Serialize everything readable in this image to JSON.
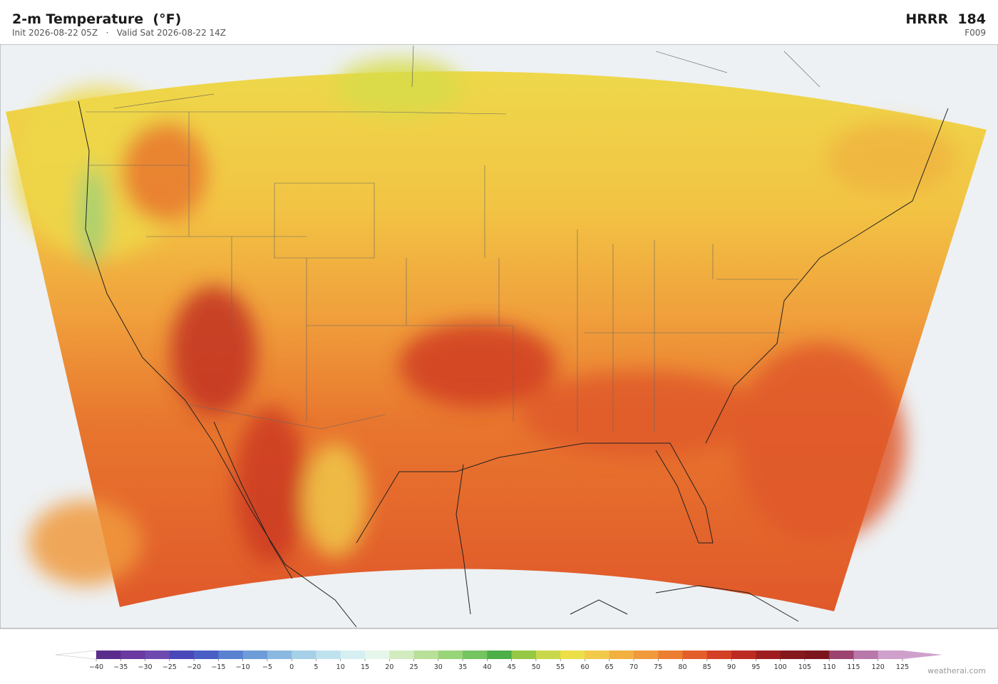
{
  "header": {
    "title": "2-m Temperature  (°F)",
    "subtitle": "Init 2026-08-22 05Z   ·   Valid Sat 2026-08-22 14Z",
    "model": "HRRR  184",
    "forecast_hour": "F009"
  },
  "colorbar": {
    "ticks": [
      {
        "value": -40,
        "label": "−40"
      },
      {
        "value": -35,
        "label": "−35"
      },
      {
        "value": -30,
        "label": "−30"
      },
      {
        "value": -25,
        "label": "−25"
      },
      {
        "value": -20,
        "label": "−20"
      },
      {
        "value": -15,
        "label": "−15"
      },
      {
        "value": -10,
        "label": "−10"
      },
      {
        "value": -5,
        "label": "−5"
      },
      0,
      5,
      10,
      15,
      20,
      25,
      30,
      35,
      40,
      45,
      50,
      55,
      60,
      65,
      70,
      75,
      80,
      85,
      90,
      95,
      100,
      105,
      110,
      115,
      120,
      125
    ],
    "colors": [
      "#5a2d8c",
      "#6a3aa0",
      "#6e4ab0",
      "#4a48b8",
      "#4a5fc4",
      "#5a80d0",
      "#6e9cd8",
      "#8ab8e0",
      "#a6d0e8",
      "#bfe2ee",
      "#d6eff2",
      "#e6f6ea",
      "#d2ecc0",
      "#b8e098",
      "#98d478",
      "#74c460",
      "#4caf48",
      "#96c844",
      "#c8d84a",
      "#ecdf48",
      "#f2c94a",
      "#f2b040",
      "#f09a3c",
      "#ec7e32",
      "#e45e2c",
      "#d44024",
      "#bc2a22",
      "#9e1e20",
      "#84181c",
      "#7c141c",
      "#9c4470",
      "#b878ac",
      "#d0a0cc"
    ]
  },
  "credit": "weatherai.com"
}
